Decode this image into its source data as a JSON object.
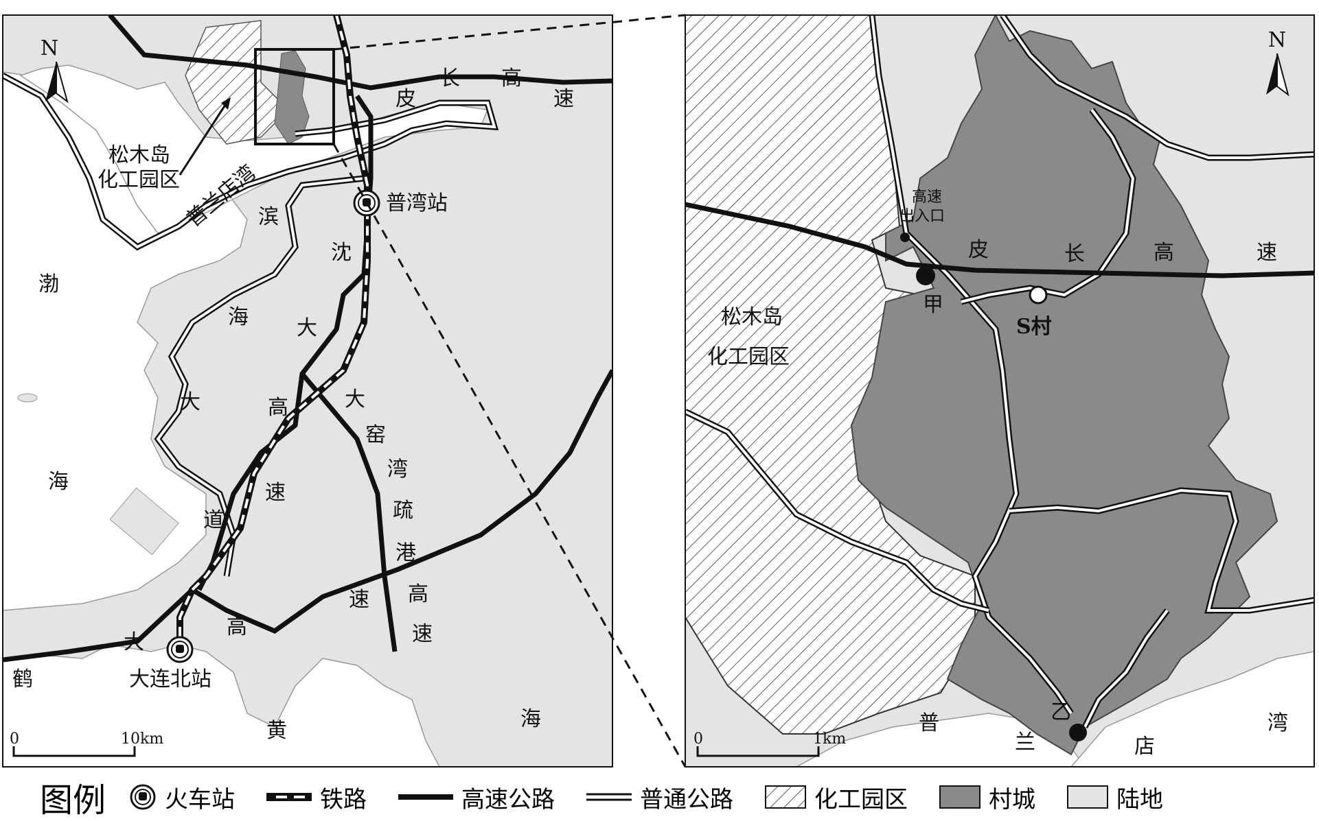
{
  "north_symbol": "N",
  "left_map": {
    "labels": {
      "chem_park": [
        "松木岛",
        "化工园区"
      ],
      "bay": "普兰店湾",
      "station_n": "普湾站",
      "station_s": "大连北站",
      "sea_w": [
        "渤",
        "海"
      ],
      "sea_s": [
        "黄",
        "海"
      ],
      "hwy_pichang": [
        "皮",
        "长",
        "高",
        "速"
      ],
      "hwy_binhai": [
        "滨",
        "海",
        "大",
        "道"
      ],
      "hwy_shenda": [
        "沈",
        "大",
        "高",
        "速"
      ],
      "hwy_dayao": [
        "大",
        "窑",
        "湾",
        "疏",
        "港",
        "高",
        "速"
      ],
      "hwy_heda": [
        "鹤",
        "大",
        "高",
        "速"
      ]
    },
    "scale": {
      "zero": "0",
      "end": "10km"
    }
  },
  "right_map": {
    "labels": {
      "chem_park": [
        "松木岛",
        "化工园区"
      ],
      "exit": [
        "高速",
        "出入口"
      ],
      "hwy_pichang": [
        "皮",
        "长",
        "高",
        "速"
      ],
      "point_jia": "甲",
      "village_s": "S村",
      "point_yi": "乙",
      "bay": [
        "普",
        "兰",
        "店",
        "湾"
      ]
    },
    "scale": {
      "zero": "0",
      "end": "1km"
    }
  },
  "legend": {
    "title": "图例",
    "items": {
      "station": "火车站",
      "railway": "铁路",
      "expressway": "高速公路",
      "road": "普通公路",
      "chem_park": "化工园区",
      "village": "村城",
      "land": "陆地"
    }
  },
  "colors": {
    "land": "#e4e4e4",
    "village": "#8a8a8a",
    "line": "#111111"
  }
}
